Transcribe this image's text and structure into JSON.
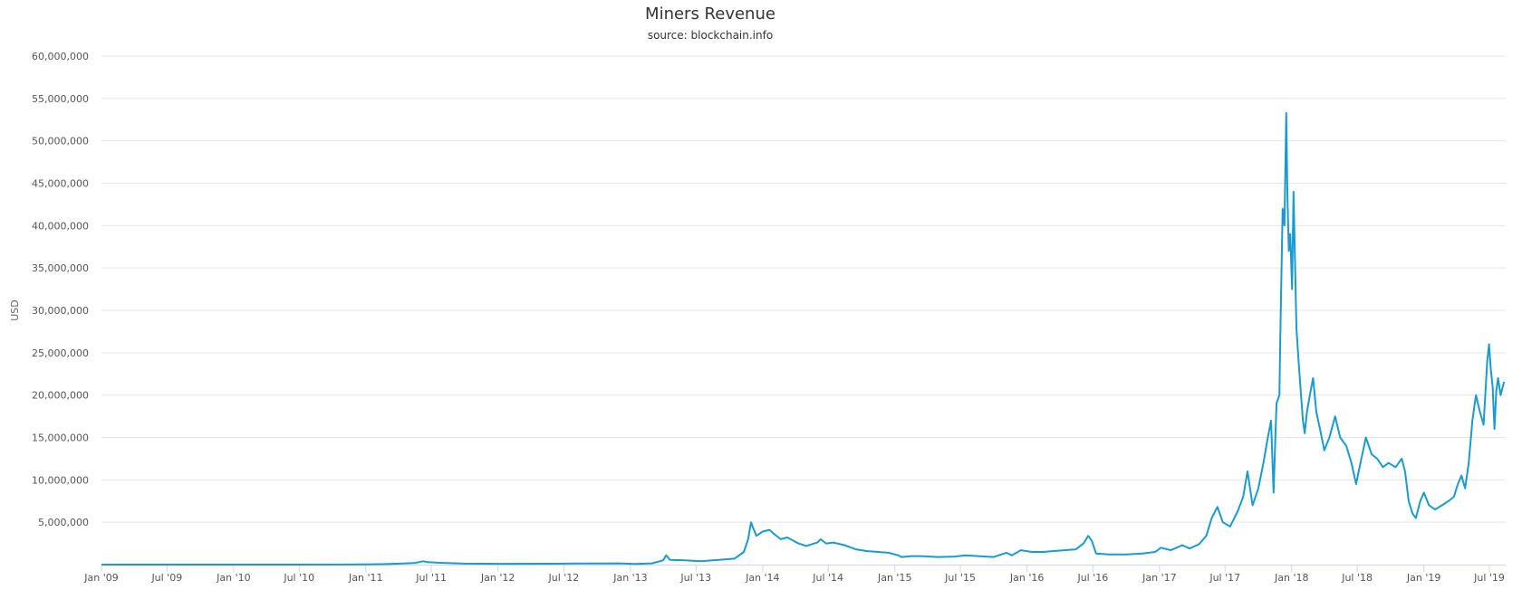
{
  "chart_data": {
    "type": "line",
    "title": "Miners Revenue",
    "subtitle": "source: blockchain.info",
    "ylabel": "USD",
    "xlabel": "",
    "ylim": [
      0,
      60000000
    ],
    "y_ticks": [
      5000000,
      10000000,
      15000000,
      20000000,
      25000000,
      30000000,
      35000000,
      40000000,
      45000000,
      50000000,
      55000000,
      60000000
    ],
    "y_tick_labels": [
      "5,000,000",
      "10,000,000",
      "15,000,000",
      "20,000,000",
      "25,000,000",
      "30,000,000",
      "35,000,000",
      "40,000,000",
      "45,000,000",
      "50,000,000",
      "55,000,000",
      "60,000,000"
    ],
    "x_ticks": [
      "2009-01-01",
      "2009-07-01",
      "2010-01-01",
      "2010-07-01",
      "2011-01-01",
      "2011-07-01",
      "2012-01-01",
      "2012-07-01",
      "2013-01-01",
      "2013-07-01",
      "2014-01-01",
      "2014-07-01",
      "2015-01-01",
      "2015-07-01",
      "2016-01-01",
      "2016-07-01",
      "2017-01-01",
      "2017-07-01",
      "2018-01-01",
      "2018-07-01",
      "2019-01-01",
      "2019-07-01"
    ],
    "x_tick_labels": [
      "Jan '09",
      "Jul '09",
      "Jan '10",
      "Jul '10",
      "Jan '11",
      "Jul '11",
      "Jan '12",
      "Jul '12",
      "Jan '13",
      "Jul '13",
      "Jan '14",
      "Jul '14",
      "Jan '15",
      "Jul '15",
      "Jan '16",
      "Jul '16",
      "Jan '17",
      "Jul '17",
      "Jan '18",
      "Jul '18",
      "Jan '19",
      "Jul '19"
    ],
    "xlim": [
      "2009-01-01",
      "2019-08-15"
    ],
    "grid": true,
    "legend": false,
    "color": "#1a9bcf",
    "series": [
      {
        "values": [
          [
            "2009-01-03",
            0
          ],
          [
            "2010-01-01",
            0
          ],
          [
            "2010-07-01",
            5000
          ],
          [
            "2011-01-01",
            25000
          ],
          [
            "2011-03-01",
            60000
          ],
          [
            "2011-05-15",
            180000
          ],
          [
            "2011-06-08",
            400000
          ],
          [
            "2011-06-20",
            300000
          ],
          [
            "2011-08-01",
            200000
          ],
          [
            "2011-10-01",
            120000
          ],
          [
            "2012-01-01",
            100000
          ],
          [
            "2012-06-01",
            110000
          ],
          [
            "2012-09-01",
            140000
          ],
          [
            "2012-12-01",
            150000
          ],
          [
            "2013-01-15",
            90000
          ],
          [
            "2013-03-01",
            150000
          ],
          [
            "2013-04-01",
            500000
          ],
          [
            "2013-04-10",
            1100000
          ],
          [
            "2013-04-20",
            550000
          ],
          [
            "2013-06-01",
            500000
          ],
          [
            "2013-07-15",
            400000
          ],
          [
            "2013-09-01",
            550000
          ],
          [
            "2013-10-15",
            700000
          ],
          [
            "2013-11-10",
            1500000
          ],
          [
            "2013-11-22",
            3000000
          ],
          [
            "2013-11-30",
            5000000
          ],
          [
            "2013-12-05",
            4400000
          ],
          [
            "2013-12-15",
            3400000
          ],
          [
            "2014-01-01",
            3900000
          ],
          [
            "2014-01-20",
            4100000
          ],
          [
            "2014-02-05",
            3500000
          ],
          [
            "2014-02-20",
            3000000
          ],
          [
            "2014-03-10",
            3200000
          ],
          [
            "2014-04-10",
            2500000
          ],
          [
            "2014-05-01",
            2200000
          ],
          [
            "2014-06-01",
            2600000
          ],
          [
            "2014-06-10",
            3000000
          ],
          [
            "2014-06-25",
            2500000
          ],
          [
            "2014-07-15",
            2600000
          ],
          [
            "2014-08-15",
            2300000
          ],
          [
            "2014-09-15",
            1800000
          ],
          [
            "2014-10-15",
            1600000
          ],
          [
            "2014-11-15",
            1500000
          ],
          [
            "2014-12-15",
            1400000
          ],
          [
            "2015-01-10",
            1100000
          ],
          [
            "2015-01-20",
            900000
          ],
          [
            "2015-02-15",
            1000000
          ],
          [
            "2015-03-15",
            1000000
          ],
          [
            "2015-05-01",
            900000
          ],
          [
            "2015-06-15",
            950000
          ],
          [
            "2015-07-15",
            1100000
          ],
          [
            "2015-08-20",
            1000000
          ],
          [
            "2015-10-01",
            900000
          ],
          [
            "2015-11-05",
            1400000
          ],
          [
            "2015-11-20",
            1100000
          ],
          [
            "2015-12-15",
            1700000
          ],
          [
            "2016-01-15",
            1500000
          ],
          [
            "2016-02-15",
            1500000
          ],
          [
            "2016-03-15",
            1600000
          ],
          [
            "2016-05-15",
            1800000
          ],
          [
            "2016-06-05",
            2500000
          ],
          [
            "2016-06-18",
            3400000
          ],
          [
            "2016-06-28",
            2800000
          ],
          [
            "2016-07-10",
            1300000
          ],
          [
            "2016-08-15",
            1200000
          ],
          [
            "2016-10-01",
            1200000
          ],
          [
            "2016-11-15",
            1300000
          ],
          [
            "2016-12-20",
            1500000
          ],
          [
            "2017-01-05",
            2000000
          ],
          [
            "2017-02-01",
            1700000
          ],
          [
            "2017-03-05",
            2300000
          ],
          [
            "2017-03-25",
            1900000
          ],
          [
            "2017-04-20",
            2400000
          ],
          [
            "2017-05-10",
            3400000
          ],
          [
            "2017-05-25",
            5500000
          ],
          [
            "2017-06-10",
            6800000
          ],
          [
            "2017-06-25",
            5000000
          ],
          [
            "2017-07-15",
            4500000
          ],
          [
            "2017-08-05",
            6300000
          ],
          [
            "2017-08-20",
            8000000
          ],
          [
            "2017-09-01",
            11000000
          ],
          [
            "2017-09-15",
            7000000
          ],
          [
            "2017-10-01",
            9000000
          ],
          [
            "2017-10-15",
            12000000
          ],
          [
            "2017-10-25",
            14500000
          ],
          [
            "2017-11-05",
            17000000
          ],
          [
            "2017-11-12",
            8500000
          ],
          [
            "2017-11-20",
            19000000
          ],
          [
            "2017-11-28",
            20000000
          ],
          [
            "2017-12-01",
            28000000
          ],
          [
            "2017-12-07",
            42000000
          ],
          [
            "2017-12-12",
            40000000
          ],
          [
            "2017-12-17",
            53300000
          ],
          [
            "2017-12-20",
            44000000
          ],
          [
            "2017-12-24",
            37000000
          ],
          [
            "2017-12-28",
            39000000
          ],
          [
            "2018-01-02",
            32500000
          ],
          [
            "2018-01-06",
            44000000
          ],
          [
            "2018-01-10",
            36000000
          ],
          [
            "2018-01-14",
            28000000
          ],
          [
            "2018-01-20",
            24000000
          ],
          [
            "2018-01-25",
            21000000
          ],
          [
            "2018-02-01",
            17000000
          ],
          [
            "2018-02-06",
            15500000
          ],
          [
            "2018-02-12",
            18000000
          ],
          [
            "2018-02-20",
            20000000
          ],
          [
            "2018-03-01",
            22000000
          ],
          [
            "2018-03-10",
            18000000
          ],
          [
            "2018-03-20",
            16000000
          ],
          [
            "2018-04-01",
            13500000
          ],
          [
            "2018-04-15",
            15000000
          ],
          [
            "2018-05-01",
            17500000
          ],
          [
            "2018-05-15",
            15000000
          ],
          [
            "2018-06-01",
            14000000
          ],
          [
            "2018-06-15",
            12000000
          ],
          [
            "2018-06-28",
            9500000
          ],
          [
            "2018-07-10",
            12000000
          ],
          [
            "2018-07-25",
            15000000
          ],
          [
            "2018-08-10",
            13000000
          ],
          [
            "2018-08-25",
            12500000
          ],
          [
            "2018-09-10",
            11500000
          ],
          [
            "2018-09-25",
            12000000
          ],
          [
            "2018-10-15",
            11500000
          ],
          [
            "2018-11-01",
            12500000
          ],
          [
            "2018-11-10",
            11000000
          ],
          [
            "2018-11-20",
            7500000
          ],
          [
            "2018-12-01",
            6000000
          ],
          [
            "2018-12-10",
            5500000
          ],
          [
            "2018-12-22",
            7500000
          ],
          [
            "2019-01-01",
            8500000
          ],
          [
            "2019-01-15",
            7000000
          ],
          [
            "2019-02-01",
            6500000
          ],
          [
            "2019-02-20",
            7000000
          ],
          [
            "2019-03-10",
            7500000
          ],
          [
            "2019-03-25",
            8000000
          ],
          [
            "2019-04-05",
            9500000
          ],
          [
            "2019-04-15",
            10500000
          ],
          [
            "2019-04-25",
            9000000
          ],
          [
            "2019-05-05",
            12000000
          ],
          [
            "2019-05-15",
            17000000
          ],
          [
            "2019-05-25",
            20000000
          ],
          [
            "2019-06-05",
            18000000
          ],
          [
            "2019-06-15",
            16500000
          ],
          [
            "2019-06-25",
            24000000
          ],
          [
            "2019-06-30",
            26000000
          ],
          [
            "2019-07-05",
            23000000
          ],
          [
            "2019-07-10",
            21000000
          ],
          [
            "2019-07-15",
            16000000
          ],
          [
            "2019-07-20",
            20500000
          ],
          [
            "2019-07-25",
            22000000
          ],
          [
            "2019-08-01",
            20000000
          ],
          [
            "2019-08-10",
            21500000
          ]
        ]
      }
    ]
  }
}
